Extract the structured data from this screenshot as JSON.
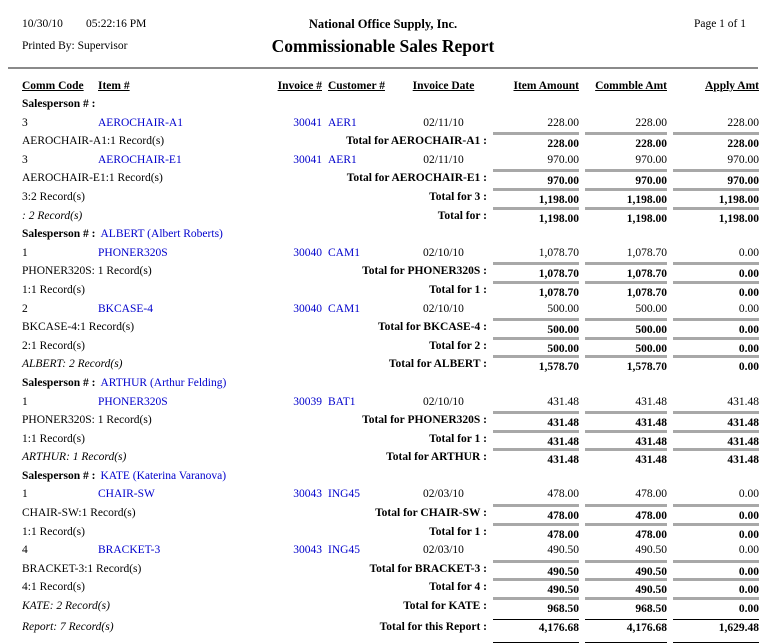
{
  "header": {
    "date": "10/30/10",
    "time": "05:22:16 PM",
    "printed_by": "Printed By: Supervisor",
    "company": "National Office Supply, Inc.",
    "title": "Commissionable Sales Report",
    "page": "Page 1 of 1"
  },
  "columns": [
    "Comm Code",
    "Item #",
    "Invoice #",
    "Customer #",
    "Invoice Date",
    "Item Amount",
    "Commble Amt",
    "Apply Amt"
  ],
  "salesperson_label": "Salesperson # :",
  "colors": {
    "link": "#0000cc",
    "rule_gray": "#a8a8a8"
  },
  "rows": [
    {
      "type": "salesperson",
      "name": ""
    },
    {
      "type": "detail",
      "comm": "3",
      "item": "AEROCHAIR-A1",
      "invoice": "30041",
      "customer": "AER1",
      "date": "02/11/10",
      "amounts": [
        "228.00",
        "228.00",
        "228.00"
      ]
    },
    {
      "type": "total",
      "left": "AEROCHAIR-A1:1 Record(s)",
      "left_italic": false,
      "label": "Total for AEROCHAIR-A1 :",
      "amounts": [
        "228.00",
        "228.00",
        "228.00"
      ]
    },
    {
      "type": "detail",
      "comm": "3",
      "item": "AEROCHAIR-E1",
      "invoice": "30041",
      "customer": "AER1",
      "date": "02/11/10",
      "amounts": [
        "970.00",
        "970.00",
        "970.00"
      ]
    },
    {
      "type": "total",
      "left": "AEROCHAIR-E1:1 Record(s)",
      "left_italic": false,
      "label": "Total for AEROCHAIR-E1 :",
      "amounts": [
        "970.00",
        "970.00",
        "970.00"
      ]
    },
    {
      "type": "total",
      "left": "3:2 Record(s)",
      "left_italic": false,
      "label": "Total for 3 :",
      "amounts": [
        "1,198.00",
        "1,198.00",
        "1,198.00"
      ]
    },
    {
      "type": "total",
      "left": ": 2 Record(s)",
      "left_italic": true,
      "label": "Total for :",
      "amounts": [
        "1,198.00",
        "1,198.00",
        "1,198.00"
      ]
    },
    {
      "type": "salesperson",
      "name": "ALBERT (Albert Roberts)"
    },
    {
      "type": "detail",
      "comm": "1",
      "item": "PHONER320S",
      "invoice": "30040",
      "customer": "CAM1",
      "date": "02/10/10",
      "amounts": [
        "1,078.70",
        "1,078.70",
        "0.00"
      ]
    },
    {
      "type": "total",
      "left": "PHONER320S: 1 Record(s)",
      "left_italic": false,
      "label": "Total for PHONER320S :",
      "amounts": [
        "1,078.70",
        "1,078.70",
        "0.00"
      ]
    },
    {
      "type": "total",
      "left": "1:1 Record(s)",
      "left_italic": false,
      "label": "Total for 1 :",
      "amounts": [
        "1,078.70",
        "1,078.70",
        "0.00"
      ]
    },
    {
      "type": "detail",
      "comm": "2",
      "item": "BKCASE-4",
      "invoice": "30040",
      "customer": "CAM1",
      "date": "02/10/10",
      "amounts": [
        "500.00",
        "500.00",
        "0.00"
      ]
    },
    {
      "type": "total",
      "left": "BKCASE-4:1 Record(s)",
      "left_italic": false,
      "label": "Total for BKCASE-4 :",
      "amounts": [
        "500.00",
        "500.00",
        "0.00"
      ]
    },
    {
      "type": "total",
      "left": "2:1 Record(s)",
      "left_italic": false,
      "label": "Total for 2 :",
      "amounts": [
        "500.00",
        "500.00",
        "0.00"
      ]
    },
    {
      "type": "total",
      "left": "ALBERT: 2 Record(s)",
      "left_italic": true,
      "label": "Total for ALBERT :",
      "amounts": [
        "1,578.70",
        "1,578.70",
        "0.00"
      ]
    },
    {
      "type": "salesperson",
      "name": "ARTHUR (Arthur Felding)"
    },
    {
      "type": "detail",
      "comm": "1",
      "item": "PHONER320S",
      "invoice": "30039",
      "customer": "BAT1",
      "date": "02/10/10",
      "amounts": [
        "431.48",
        "431.48",
        "431.48"
      ]
    },
    {
      "type": "total",
      "left": "PHONER320S: 1 Record(s)",
      "left_italic": false,
      "label": "Total for PHONER320S :",
      "amounts": [
        "431.48",
        "431.48",
        "431.48"
      ]
    },
    {
      "type": "total",
      "left": "1:1 Record(s)",
      "left_italic": false,
      "label": "Total for 1 :",
      "amounts": [
        "431.48",
        "431.48",
        "431.48"
      ]
    },
    {
      "type": "total",
      "left": "ARTHUR: 1 Record(s)",
      "left_italic": true,
      "label": "Total for ARTHUR :",
      "amounts": [
        "431.48",
        "431.48",
        "431.48"
      ]
    },
    {
      "type": "salesperson",
      "name": "KATE (Katerina Varanova)"
    },
    {
      "type": "detail",
      "comm": "1",
      "item": "CHAIR-SW",
      "invoice": "30043",
      "customer": "ING45",
      "date": "02/03/10",
      "amounts": [
        "478.00",
        "478.00",
        "0.00"
      ]
    },
    {
      "type": "total",
      "left": "CHAIR-SW:1 Record(s)",
      "left_italic": false,
      "label": "Total for CHAIR-SW :",
      "amounts": [
        "478.00",
        "478.00",
        "0.00"
      ]
    },
    {
      "type": "total",
      "left": "1:1 Record(s)",
      "left_italic": false,
      "label": "Total for 1 :",
      "amounts": [
        "478.00",
        "478.00",
        "0.00"
      ]
    },
    {
      "type": "detail",
      "comm": "4",
      "item": "BRACKET-3",
      "invoice": "30043",
      "customer": "ING45",
      "date": "02/03/10",
      "amounts": [
        "490.50",
        "490.50",
        "0.00"
      ]
    },
    {
      "type": "total",
      "left": "BRACKET-3:1 Record(s)",
      "left_italic": false,
      "label": "Total for BRACKET-3 :",
      "amounts": [
        "490.50",
        "490.50",
        "0.00"
      ]
    },
    {
      "type": "total",
      "left": "4:1 Record(s)",
      "left_italic": false,
      "label": "Total for 4 :",
      "amounts": [
        "490.50",
        "490.50",
        "0.00"
      ]
    },
    {
      "type": "total",
      "left": "KATE: 2 Record(s)",
      "left_italic": true,
      "label": "Total for KATE :",
      "amounts": [
        "968.50",
        "968.50",
        "0.00"
      ]
    },
    {
      "type": "report",
      "left": "Report: 7 Record(s)",
      "left_italic": true,
      "label": "Total for this Report :",
      "amounts": [
        "4,176.68",
        "4,176.68",
        "1,629.48"
      ]
    }
  ]
}
